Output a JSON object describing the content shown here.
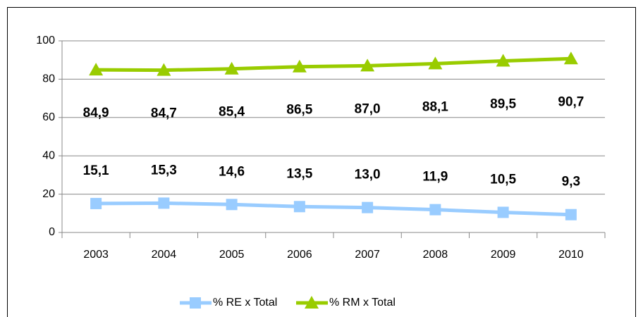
{
  "chart_data": {
    "type": "line",
    "categories": [
      "2003",
      "2004",
      "2005",
      "2006",
      "2007",
      "2008",
      "2009",
      "2010"
    ],
    "series": [
      {
        "name": "% RE x Total",
        "color": "#99ccff",
        "marker": "square",
        "values": [
          15.1,
          15.3,
          14.6,
          13.5,
          13.0,
          11.9,
          10.5,
          9.3
        ],
        "value_labels": [
          "15,1",
          "15,3",
          "14,6",
          "13,5",
          "13,0",
          "11,9",
          "10,5",
          "9,3"
        ]
      },
      {
        "name": "% RM x Total",
        "color": "#99cc00",
        "marker": "triangle",
        "values": [
          84.9,
          84.7,
          85.4,
          86.5,
          87.0,
          88.1,
          89.5,
          90.7
        ],
        "value_labels": [
          "84,9",
          "84,7",
          "85,4",
          "86,5",
          "87,0",
          "88,1",
          "89,5",
          "90,7"
        ]
      }
    ],
    "ylim": [
      0,
      100
    ],
    "yticks": [
      0,
      20,
      40,
      60,
      80,
      100
    ],
    "grid": true,
    "legend": "bottom"
  }
}
